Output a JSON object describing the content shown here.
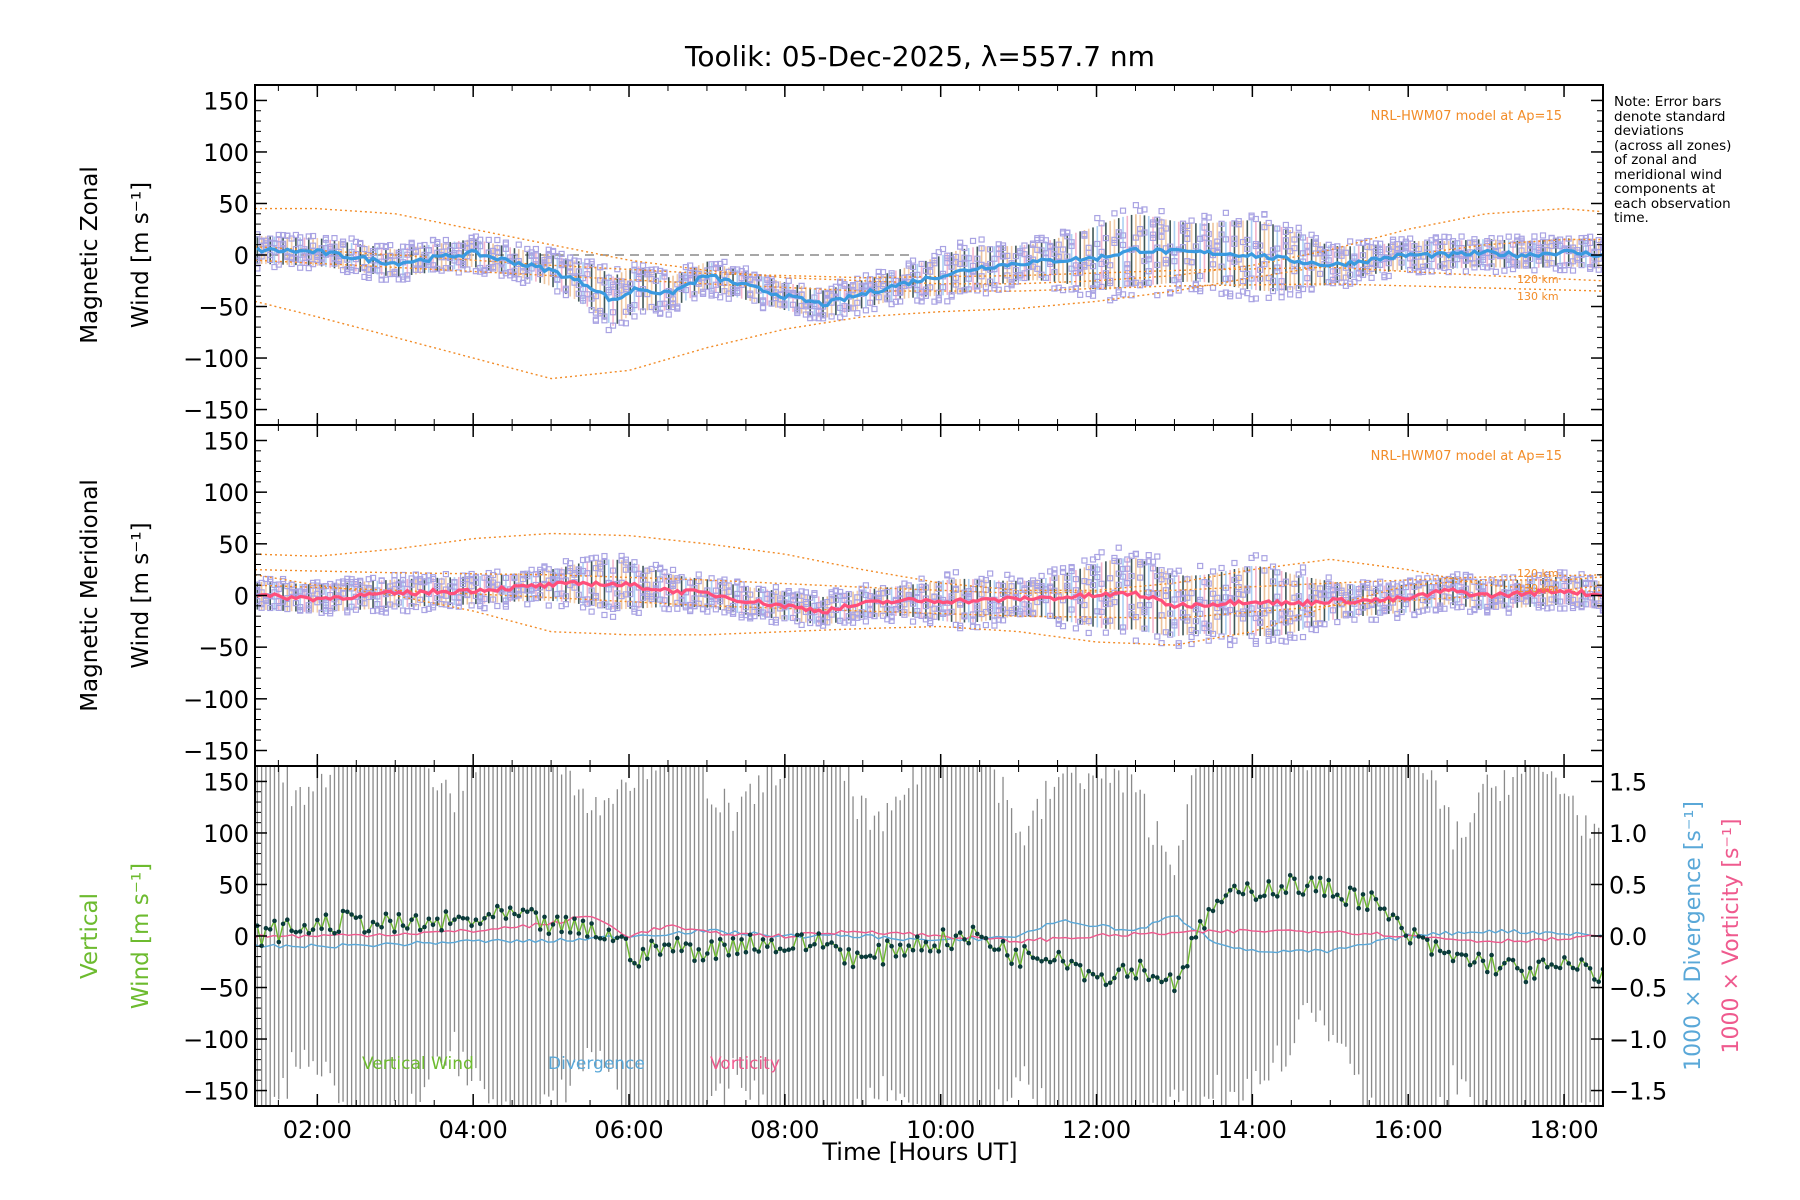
{
  "title": "Toolik: 05-Dec-2025, λ=557.7 nm",
  "note_lines": [
    "Note: Error bars",
    "denote standard",
    "deviations",
    "(across all zones)",
    "of zonal and",
    "meridional wind",
    "components at",
    "each observation",
    "time."
  ],
  "xlabel": "Time [Hours UT]",
  "colors": {
    "model": "#f28c28",
    "zonal_mean": "#3a9ae0",
    "meridional_mean": "#ff4f7b",
    "zone_points": "#a9a3e3",
    "vertical": "#6dbb2f",
    "divergence": "#5aa8d8",
    "vorticity": "#ef5a8e",
    "error_bar": "#8a8a8a",
    "vertical_points": "#0a3a3a"
  },
  "chart_data": [
    {
      "type": "line",
      "panel": "zonal",
      "ylabel_line1": "Magnetic Zonal",
      "ylabel_line2": "Wind [m s⁻¹]",
      "xlim": [
        1.2,
        18.5
      ],
      "ylim": [
        -165,
        165
      ],
      "yticks": [
        -150,
        -100,
        -50,
        0,
        50,
        100,
        150
      ],
      "xticks": [
        "02:00",
        "04:00",
        "06:00",
        "08:00",
        "10:00",
        "12:00",
        "14:00",
        "16:00",
        "18:00"
      ],
      "model_label": "NRL-HWM07 model at Ap=15",
      "model_alt_labels": [
        "120 km",
        "130 km"
      ],
      "series": [
        {
          "x": [
            1.2,
            2,
            3,
            4,
            5,
            5.5,
            5.8,
            6.1,
            6.5,
            7,
            7.5,
            8,
            8.5,
            9,
            9.5,
            10,
            10.5,
            11,
            11.5,
            12,
            12.5,
            13,
            13.5,
            14,
            14.5,
            15,
            15.5,
            16,
            16.5,
            17,
            17.5,
            18,
            18.5
          ],
          "values": [
            5,
            3,
            -8,
            2,
            -15,
            -30,
            -45,
            -32,
            -38,
            -20,
            -30,
            -40,
            -48,
            -38,
            -28,
            -20,
            -12,
            -8,
            -5,
            -3,
            5,
            3,
            2,
            0,
            -5,
            -10,
            -5,
            0,
            0,
            2,
            0,
            3,
            0
          ]
        },
        {
          "x": [
            1.2,
            2,
            3,
            4,
            5,
            6,
            7,
            8,
            9,
            10,
            11,
            12,
            13,
            14,
            15,
            16,
            17,
            18,
            18.5
          ],
          "values": [
            45,
            45,
            40,
            25,
            10,
            -5,
            -15,
            -22,
            -25,
            -28,
            -28,
            -25,
            -20,
            -10,
            5,
            25,
            40,
            45,
            42
          ]
        },
        {
          "x": [
            1.2,
            2,
            3,
            4,
            5,
            6,
            7,
            8,
            9,
            10,
            11,
            12,
            13,
            14,
            15,
            16,
            17,
            18,
            18.5
          ],
          "values": [
            -45,
            -60,
            -80,
            -100,
            -120,
            -112,
            -90,
            -72,
            -60,
            -55,
            -52,
            -45,
            -35,
            -22,
            -10,
            0,
            10,
            15,
            15
          ]
        },
        {
          "x": [
            1.2,
            3,
            5,
            7,
            9,
            11,
            13,
            15,
            17,
            18.5
          ],
          "values": [
            8,
            0,
            -10,
            -18,
            -22,
            -20,
            -15,
            -12,
            -20,
            -25
          ]
        },
        {
          "x": [
            1.2,
            3,
            5,
            7,
            9,
            11,
            13,
            15,
            17,
            18.5
          ],
          "values": [
            -5,
            -12,
            -20,
            -28,
            -35,
            -35,
            -30,
            -28,
            -32,
            -35
          ]
        }
      ]
    },
    {
      "type": "line",
      "panel": "meridional",
      "ylabel_line1": "Magnetic Meridional",
      "ylabel_line2": "Wind [m s⁻¹]",
      "xlim": [
        1.2,
        18.5
      ],
      "ylim": [
        -165,
        165
      ],
      "yticks": [
        -150,
        -100,
        -50,
        0,
        50,
        100,
        150
      ],
      "model_label": "NRL-HWM07 model at Ap=15",
      "model_alt_labels": [
        "120 km",
        "130 km"
      ],
      "series": [
        {
          "x": [
            1.2,
            2,
            3,
            4,
            5,
            5.5,
            6,
            6.5,
            7,
            7.5,
            8,
            8.5,
            9,
            9.5,
            10,
            10.5,
            11,
            11.5,
            12,
            12.5,
            13,
            13.5,
            14,
            14.5,
            15,
            15.5,
            16,
            16.5,
            17,
            17.5,
            18,
            18.5
          ],
          "values": [
            0,
            -3,
            2,
            5,
            10,
            12,
            10,
            5,
            2,
            -5,
            -10,
            -15,
            -8,
            -5,
            -5,
            -5,
            -3,
            -2,
            0,
            2,
            -10,
            -8,
            -5,
            -8,
            -5,
            -5,
            -3,
            5,
            0,
            2,
            5,
            0
          ]
        },
        {
          "x": [
            1.2,
            2,
            3,
            4,
            5,
            6,
            7,
            8,
            9,
            10,
            11,
            12,
            13,
            14,
            15,
            16,
            17,
            18,
            18.5
          ],
          "values": [
            40,
            38,
            45,
            55,
            60,
            58,
            50,
            40,
            25,
            12,
            5,
            5,
            12,
            25,
            35,
            25,
            10,
            5,
            10
          ]
        },
        {
          "x": [
            1.2,
            2,
            3,
            4,
            5,
            6,
            7,
            8,
            9,
            10,
            11,
            12,
            13,
            14,
            15,
            16,
            17,
            18,
            18.5
          ],
          "values": [
            20,
            10,
            0,
            -15,
            -35,
            -38,
            -38,
            -35,
            -32,
            -30,
            -35,
            -45,
            -48,
            -35,
            -10,
            10,
            15,
            15,
            18
          ]
        },
        {
          "x": [
            1.2,
            3,
            5,
            7,
            9,
            11,
            13,
            15,
            17,
            18.5
          ],
          "values": [
            25,
            22,
            20,
            15,
            8,
            2,
            5,
            12,
            18,
            20
          ]
        },
        {
          "x": [
            1.2,
            3,
            5,
            7,
            9,
            11,
            13,
            15,
            17,
            18.5
          ],
          "values": [
            10,
            5,
            -2,
            -10,
            -15,
            -20,
            -22,
            -10,
            0,
            5
          ]
        }
      ]
    },
    {
      "type": "line",
      "panel": "vertical",
      "ylabel_line1": "Vertical",
      "ylabel_line2": "Wind [m s⁻¹]",
      "ylabel_right1": "1000 × Divergence [s⁻¹]",
      "ylabel_right2": "1000 × Vorticity [s⁻¹]",
      "xlim": [
        1.2,
        18.5
      ],
      "ylim": [
        -165,
        165
      ],
      "yticks": [
        -150,
        -100,
        -50,
        0,
        50,
        100,
        150
      ],
      "yticks_right": [
        "−1.5",
        "−1.0",
        "−0.5",
        "0.0",
        "0.5",
        "1.0",
        "1.5"
      ],
      "legend": [
        "Vertical Wind",
        "Divergence",
        "Vorticity"
      ],
      "series": [
        {
          "name": "Vertical Wind",
          "x": [
            1.2,
            1.5,
            2,
            2.5,
            3,
            3.5,
            4,
            4.5,
            5,
            5.5,
            5.8,
            6.1,
            6.5,
            7,
            7.5,
            8,
            8.5,
            9,
            9.5,
            10,
            10.5,
            11,
            11.5,
            12,
            12.5,
            13,
            13.5,
            14,
            14.5,
            15,
            15.5,
            16,
            16.5,
            17,
            17.5,
            18,
            18.5
          ],
          "values": [
            0,
            5,
            10,
            15,
            10,
            12,
            15,
            20,
            10,
            5,
            0,
            -20,
            -10,
            -15,
            -5,
            -10,
            -5,
            -25,
            -10,
            -5,
            0,
            -20,
            -15,
            -40,
            -30,
            -45,
            30,
            45,
            50,
            45,
            35,
            0,
            -20,
            -25,
            -35,
            -30,
            -35
          ]
        },
        {
          "name": "Divergence",
          "x": [
            1.2,
            2,
            3,
            4,
            5,
            6,
            7,
            8,
            9,
            10,
            11,
            11.5,
            12,
            12.5,
            13,
            13.5,
            14,
            15,
            16,
            17,
            18,
            18.5
          ],
          "values": [
            -10,
            -10,
            -8,
            -5,
            -5,
            0,
            5,
            0,
            0,
            -5,
            0,
            15,
            10,
            5,
            20,
            -5,
            -15,
            -15,
            0,
            5,
            3,
            0
          ]
        },
        {
          "name": "Vorticity",
          "x": [
            1.2,
            2,
            3,
            4,
            5,
            5.5,
            6,
            6.5,
            7,
            8,
            9,
            10,
            11,
            12,
            13,
            14,
            15,
            16,
            17,
            18,
            18.5
          ],
          "values": [
            0,
            0,
            2,
            5,
            12,
            20,
            0,
            10,
            3,
            0,
            5,
            0,
            -5,
            0,
            3,
            5,
            5,
            0,
            -5,
            -3,
            0
          ]
        }
      ]
    }
  ]
}
